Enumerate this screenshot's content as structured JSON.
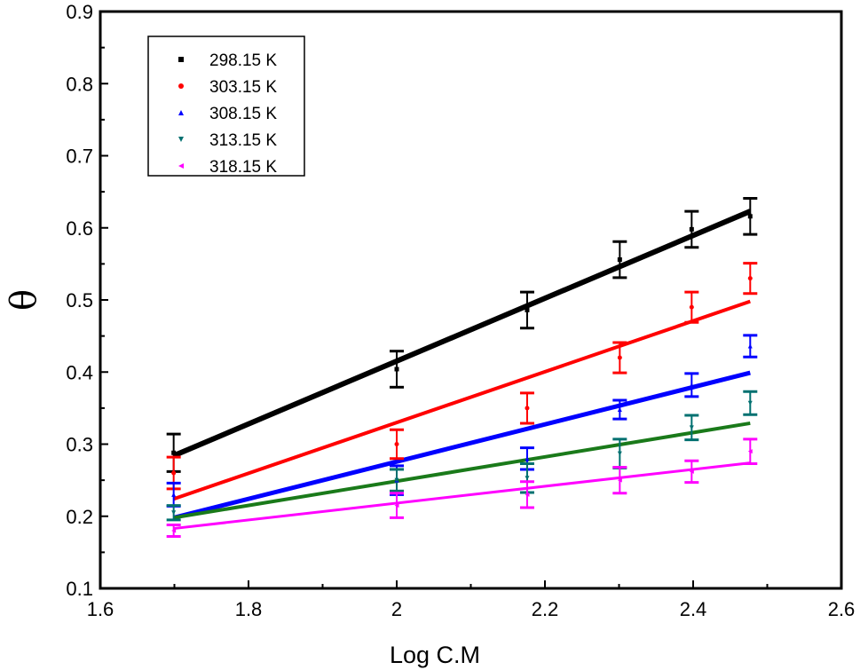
{
  "chart_data": {
    "type": "scatter",
    "xlabel": "Log C.M",
    "ylabel": "θ",
    "xlim": [
      1.6,
      2.6
    ],
    "ylim": [
      0.1,
      0.9
    ],
    "xticks": [
      "1.6",
      "1.8",
      "2",
      "2.2",
      "2.4",
      "2.6"
    ],
    "yticks": [
      "0.1",
      "0.2",
      "0.3",
      "0.4",
      "0.5",
      "0.6",
      "0.7",
      "0.8",
      "0.9"
    ],
    "grid": false,
    "legend_position": "top-left",
    "x": [
      1.699,
      2.0,
      2.176,
      2.301,
      2.398,
      2.477
    ],
    "series": [
      {
        "name": "298.15 K",
        "color": "#000000",
        "marker": "square",
        "values": [
          0.288,
          0.404,
          0.486,
          0.556,
          0.598,
          0.616
        ],
        "error": [
          0.026,
          0.025,
          0.025,
          0.025,
          0.025,
          0.025
        ],
        "fit": [
          0.284,
          0.623
        ],
        "fit_width": 6
      },
      {
        "name": "303.15 K",
        "color": "#ff0000",
        "marker": "circle",
        "values": [
          0.26,
          0.3,
          0.35,
          0.42,
          0.49,
          0.53
        ],
        "error": [
          0.022,
          0.02,
          0.021,
          0.021,
          0.021,
          0.021
        ],
        "fit": [
          0.224,
          0.498
        ],
        "fit_width": 4
      },
      {
        "name": "308.15 K",
        "color": "#0000ff",
        "marker": "triangle-up",
        "values": [
          0.23,
          0.25,
          0.28,
          0.348,
          0.382,
          0.436
        ],
        "error": [
          0.016,
          0.02,
          0.015,
          0.013,
          0.016,
          0.015
        ],
        "fit": [
          0.198,
          0.399
        ],
        "fit_width": 5
      },
      {
        "name": "313.15 K",
        "color": "#007070",
        "marker": "triangle-down",
        "values": [
          0.205,
          0.25,
          0.253,
          0.287,
          0.323,
          0.357
        ],
        "error": [
          0.01,
          0.015,
          0.02,
          0.02,
          0.017,
          0.016
        ],
        "fit": [
          0.198,
          0.329
        ],
        "fit_width": 4,
        "fit_color": "#1a7a1a"
      },
      {
        "name": "318.15 K",
        "color": "#ff00ff",
        "marker": "triangle-left",
        "values": [
          0.18,
          0.215,
          0.23,
          0.25,
          0.262,
          0.29
        ],
        "error": [
          0.008,
          0.017,
          0.018,
          0.018,
          0.015,
          0.017
        ],
        "fit": [
          0.183,
          0.274
        ],
        "fit_width": 3
      }
    ]
  }
}
